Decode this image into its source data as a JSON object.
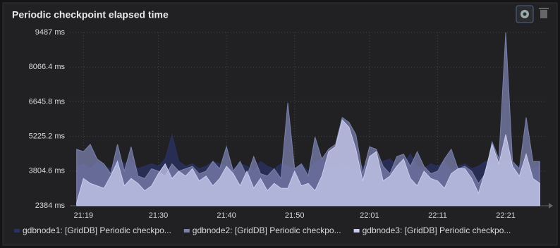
{
  "chart_data": {
    "type": "area",
    "title": "Periodic checkpoint elapsed time",
    "x": [
      "21:18",
      "21:19",
      "21:20",
      "21:21",
      "21:22",
      "21:23",
      "21:24",
      "21:25",
      "21:26",
      "21:27",
      "21:28",
      "21:29",
      "21:30",
      "21:31",
      "21:32",
      "21:33",
      "21:34",
      "21:35",
      "21:36",
      "21:37",
      "21:38",
      "21:39",
      "21:40",
      "21:41",
      "21:42",
      "21:43",
      "21:44",
      "21:45",
      "21:46",
      "21:47",
      "21:48",
      "21:49",
      "21:50",
      "21:51",
      "21:52",
      "21:53",
      "21:54",
      "21:55",
      "21:56",
      "21:57",
      "21:58",
      "21:59",
      "22:00",
      "22:01",
      "22:02",
      "22:03",
      "22:04",
      "22:05",
      "22:06",
      "22:07",
      "22:08",
      "22:09",
      "22:10",
      "22:11",
      "22:12",
      "22:13",
      "22:14",
      "22:15",
      "22:16",
      "22:17",
      "22:18",
      "22:19",
      "22:20",
      "22:21",
      "22:22",
      "22:23",
      "22:24",
      "22:25",
      "22:26"
    ],
    "xlim": [
      "21:17",
      "22:27"
    ],
    "xticks": [
      "21:19",
      "21:30",
      "21:40",
      "21:50",
      "22:01",
      "22:11",
      "22:21"
    ],
    "ylim": [
      2384,
      9487
    ],
    "yticks": [
      {
        "value": 2384,
        "label": "2384 ms"
      },
      {
        "value": 3804.6,
        "label": "3804.6 ms"
      },
      {
        "value": 5225.2,
        "label": "5225.2 ms"
      },
      {
        "value": 6645.8,
        "label": "6645.8 ms"
      },
      {
        "value": 8066.4,
        "label": "8066.4 ms"
      },
      {
        "value": 9487,
        "label": "9487 ms"
      }
    ],
    "grid": true,
    "series": [
      {
        "name": "gdbnode1: [GridDB] Periodic checkpo...",
        "color": "#2b3263",
        "values": [
          4000,
          4100,
          3900,
          4200,
          4000,
          3900,
          4300,
          4100,
          4200,
          3900,
          4000,
          4100,
          4000,
          4300,
          5300,
          4200,
          4000,
          4100,
          3900,
          4000,
          4200,
          4100,
          4000,
          3900,
          4100,
          4000,
          3800,
          4200,
          4000,
          3900,
          4100,
          4000,
          3900,
          4100,
          3800,
          4200,
          4300,
          4000,
          3900,
          4100,
          4000,
          3800,
          4000,
          4100,
          3900,
          4200,
          4300,
          4000,
          4100,
          4500,
          4000,
          3900,
          4100,
          4000,
          4200,
          3800,
          4000,
          4100,
          3900,
          4000,
          4200,
          4100,
          4000,
          4300,
          4100,
          4000,
          4100,
          3900,
          4000
        ]
      },
      {
        "name": "gdbnode2: [GridDB] Periodic checkpo...",
        "color": "#7b80ad",
        "values": [
          4700,
          4600,
          4900,
          4300,
          4100,
          3700,
          4900,
          3800,
          4800,
          3600,
          3500,
          3900,
          3800,
          3600,
          4100,
          3800,
          3900,
          4000,
          3700,
          3800,
          4200,
          3900,
          4800,
          3800,
          4200,
          3600,
          4400,
          3700,
          3600,
          3900,
          3500,
          6600,
          3900,
          4100,
          3600,
          5200,
          4300,
          4700,
          4900,
          6000,
          5800,
          5300,
          3700,
          4800,
          4700,
          4000,
          3700,
          4400,
          4500,
          4000,
          4600,
          4000,
          3700,
          3800,
          4300,
          4700,
          3900,
          4000,
          3800,
          3300,
          3700,
          5000,
          4300,
          9487,
          4200,
          3900,
          6000,
          4200,
          4200
        ]
      },
      {
        "name": "gdbnode3: [GridDB] Periodic checkpo...",
        "color": "#c9ccef",
        "values": [
          2500,
          3500,
          3300,
          3200,
          3100,
          3600,
          4200,
          3200,
          3500,
          3300,
          3000,
          3200,
          3700,
          4100,
          3500,
          3800,
          3600,
          3900,
          3400,
          3600,
          3200,
          3500,
          4000,
          3700,
          3200,
          3800,
          3100,
          3500,
          3000,
          3300,
          3100,
          3100,
          3800,
          3200,
          3300,
          3000,
          3600,
          4600,
          4800,
          5900,
          5600,
          4700,
          3400,
          4400,
          4600,
          3400,
          3600,
          4000,
          4300,
          3500,
          3200,
          3800,
          3500,
          3400,
          3100,
          3700,
          3900,
          3900,
          3500,
          2900,
          3800,
          4900,
          4100,
          5300,
          4000,
          3600,
          4500,
          3500,
          3300
        ]
      }
    ]
  }
}
